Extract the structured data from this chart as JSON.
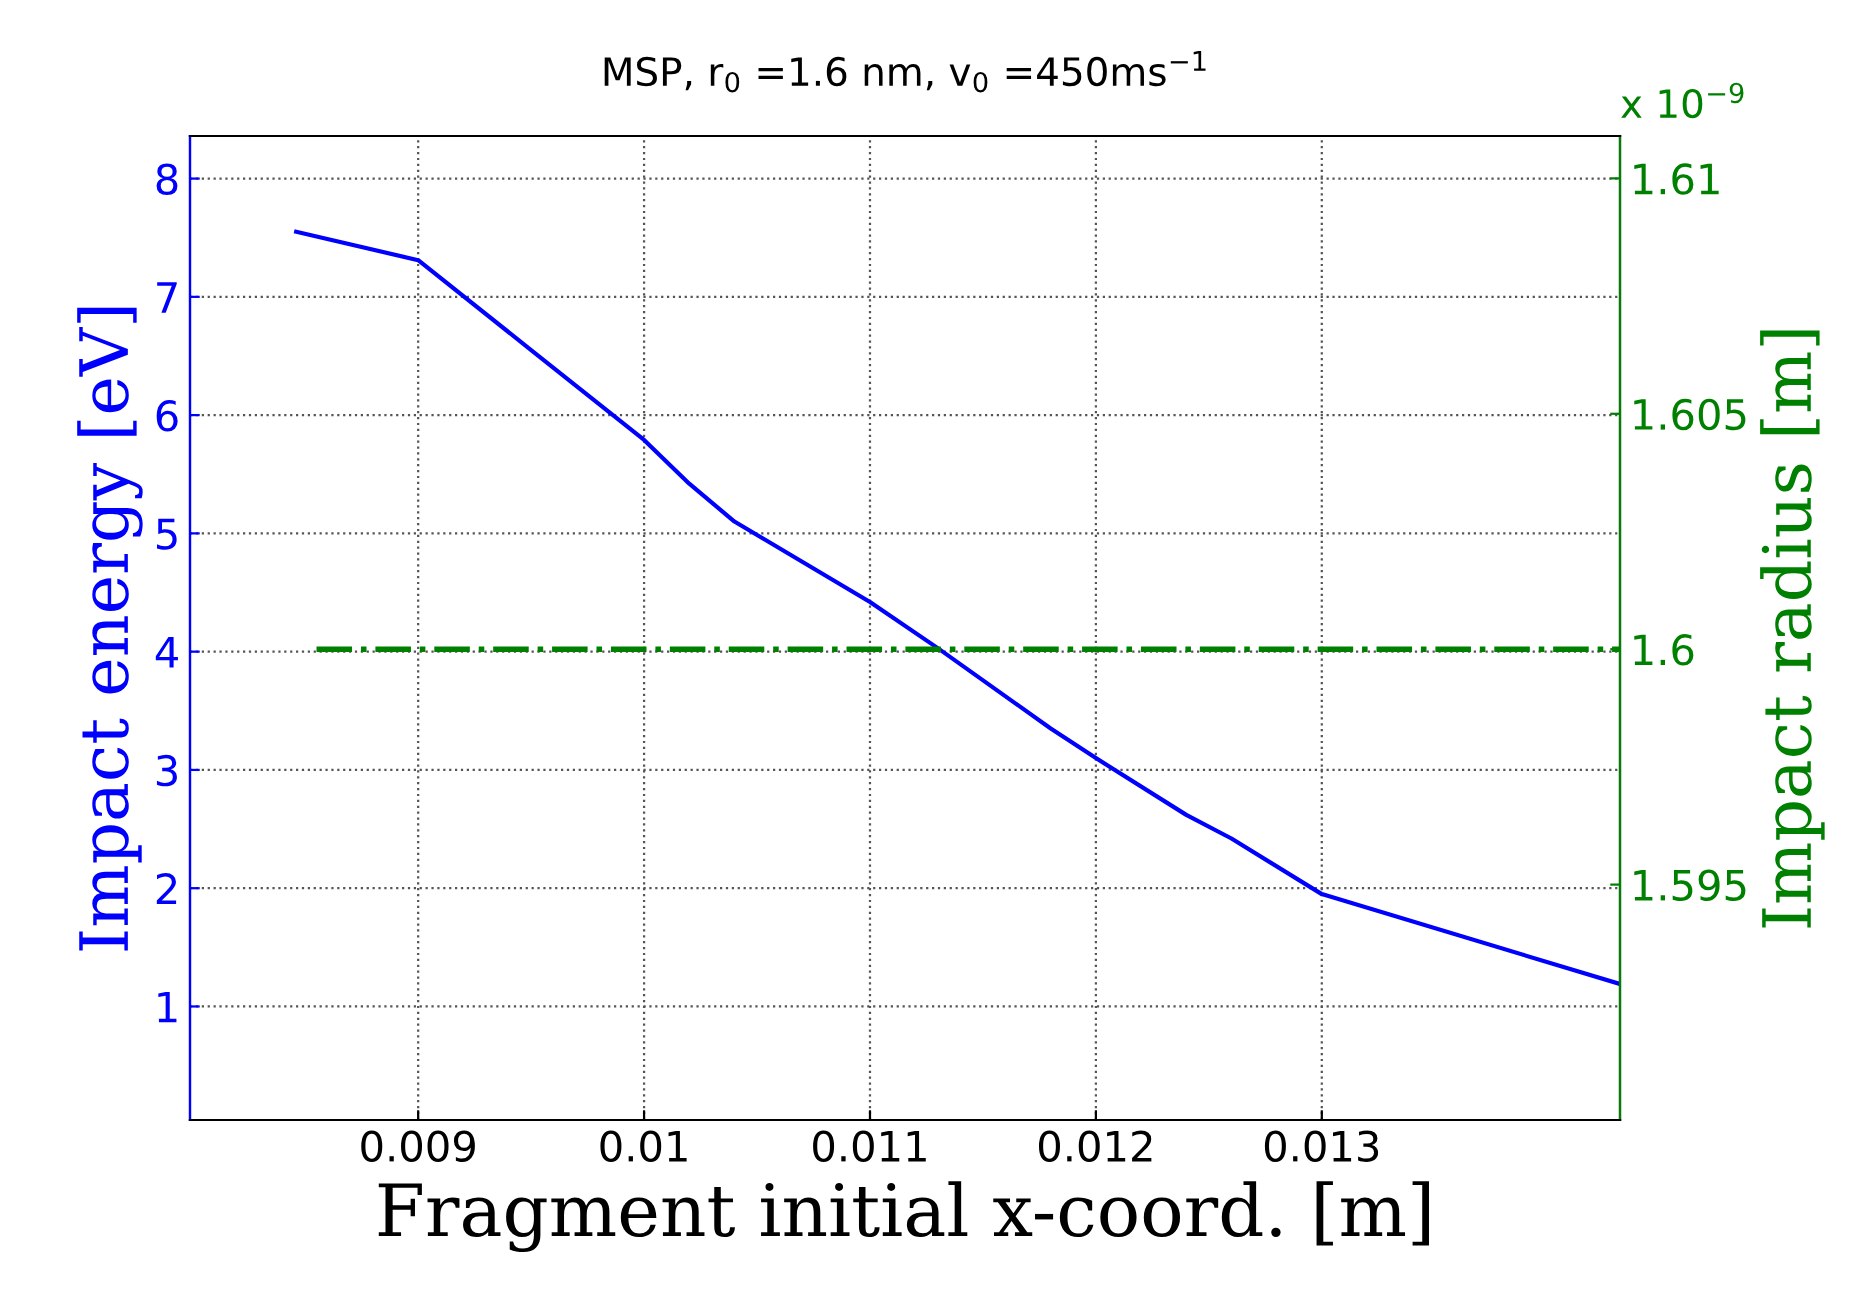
{
  "chart_data": {
    "type": "line",
    "title": "MSP, r$_{0}$ =1.6 nm, v$_{0}$ =450ms$^{−1}$",
    "xlabel": "Fragment initial x-coord. [m]",
    "ylabel": "Impact energy [eV]",
    "y2label": "Impact radius [m]",
    "annotations": [
      "x 10$^{−9}$"
    ],
    "xlim": [
      0.00799,
      0.01432
    ],
    "xticks": [
      0.009,
      0.01,
      0.011,
      0.012,
      0.013
    ],
    "ylim": [
      0.04,
      8.36
    ],
    "yticks": [
      1,
      2,
      3,
      4,
      5,
      6,
      7,
      8
    ],
    "y2lim": [
      1.59,
      1.6109
    ],
    "y2ticks": [
      1.595,
      1.6,
      1.605,
      1.61
    ],
    "grid": true,
    "series": [
      {
        "color": "#0000ff",
        "line_style": "solid",
        "x": [
          0.00846,
          0.009,
          0.0095,
          0.01,
          0.0102,
          0.0104,
          0.011,
          0.0113,
          0.0118,
          0.012,
          0.0124,
          0.0126,
          0.013,
          0.01432
        ],
        "values": [
          7.55,
          7.31,
          6.55,
          5.79,
          5.42,
          5.1,
          4.42,
          4.03,
          3.35,
          3.1,
          2.62,
          2.42,
          1.95,
          1.19
        ]
      },
      {
        "color": "#008000",
        "axis": "y2",
        "line_style": "dashdot",
        "x": [
          0.00855,
          0.01432
        ],
        "values": [
          1.6,
          1.6
        ]
      }
    ]
  }
}
